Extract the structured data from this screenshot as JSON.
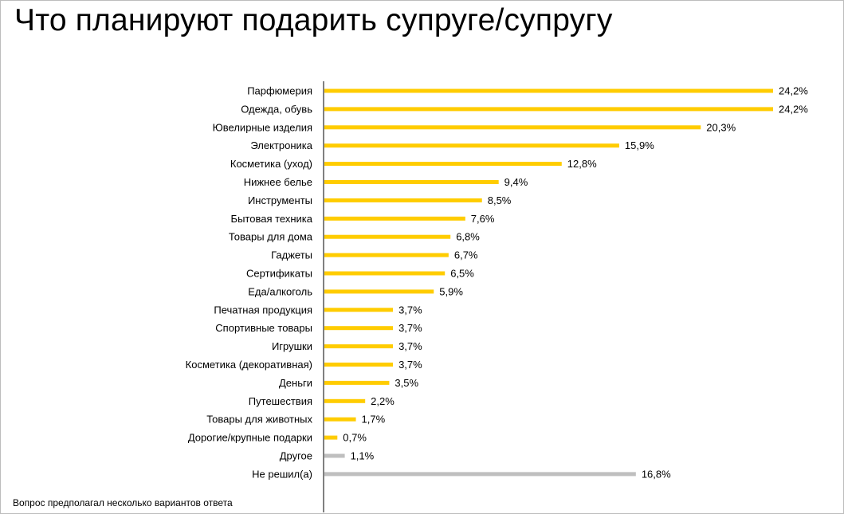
{
  "title": "Что планируют подарить супруге/супругу",
  "footnote": "Вопрос предполагал несколько вариантов ответа",
  "colors": {
    "primary": "#ffcc00",
    "secondary": "#bfbfbf",
    "axis": "#000000"
  },
  "chart_data": {
    "type": "bar",
    "orientation": "horizontal",
    "grid": false,
    "xlim": [
      0,
      24.2
    ],
    "categories": [
      "Парфюмерия",
      "Одежда, обувь",
      "Ювелирные изделия",
      "Электроника",
      "Косметика (уход)",
      "Нижнее белье",
      "Инструменты",
      "Бытовая техника",
      "Товары для дома",
      "Гаджеты",
      "Сертификаты",
      "Еда/алкоголь",
      "Печатная продукция",
      "Спортивные товары",
      "Игрушки",
      "Косметика (декоративная)",
      "Деньги",
      "Путешествия",
      "Товары для животных",
      "Дорогие/крупные подарки",
      "Другое",
      "Не решил(а)"
    ],
    "values": [
      24.2,
      24.2,
      20.3,
      15.9,
      12.8,
      9.4,
      8.5,
      7.6,
      6.8,
      6.7,
      6.5,
      5.9,
      3.7,
      3.7,
      3.7,
      3.7,
      3.5,
      2.2,
      1.7,
      0.7,
      1.1,
      16.8
    ],
    "value_labels": [
      "24,2%",
      "24,2%",
      "20,3%",
      "15,9%",
      "12,8%",
      "9,4%",
      "8,5%",
      "7,6%",
      "6,8%",
      "6,7%",
      "6,5%",
      "5,9%",
      "3,7%",
      "3,7%",
      "3,7%",
      "3,7%",
      "3,5%",
      "2,2%",
      "1,7%",
      "0,7%",
      "1,1%",
      "16,8%"
    ],
    "bar_colors": [
      "primary",
      "primary",
      "primary",
      "primary",
      "primary",
      "primary",
      "primary",
      "primary",
      "primary",
      "primary",
      "primary",
      "primary",
      "primary",
      "primary",
      "primary",
      "primary",
      "primary",
      "primary",
      "primary",
      "primary",
      "secondary",
      "secondary"
    ]
  }
}
